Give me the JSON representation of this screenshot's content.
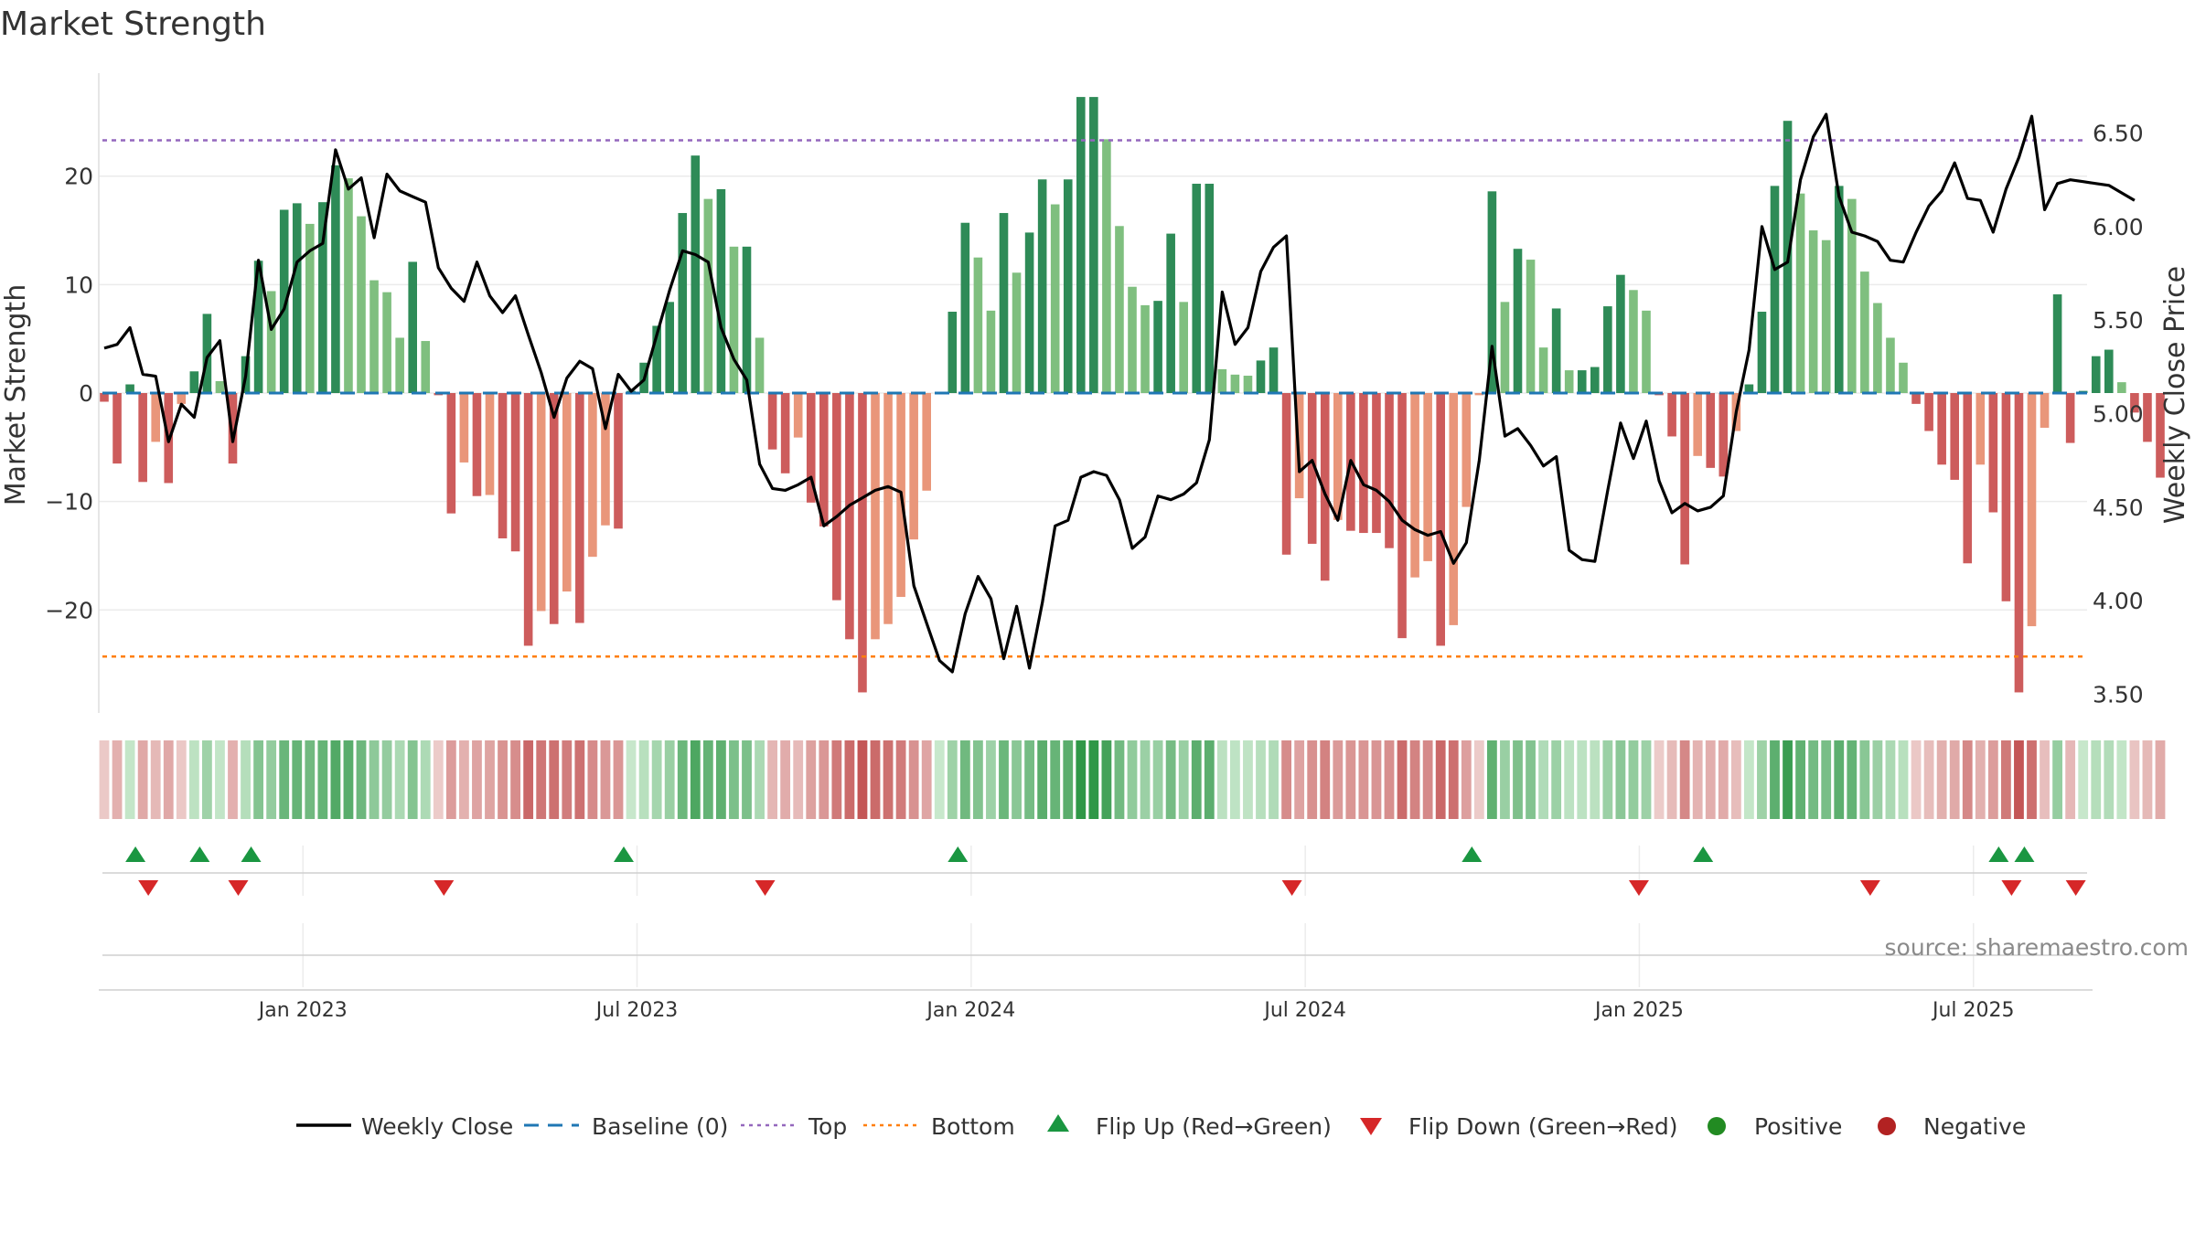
{
  "title": "Market Strength",
  "source": "source: sharemaestro.com",
  "colors": {
    "strong_pos": "#2e8b57",
    "weak_pos": "#7fbf7f",
    "strong_neg": "#cd5c5c",
    "weak_neg": "#e9967a",
    "line": "#000000",
    "baseline": "#1f77b4",
    "top": "#9467bd",
    "bottom": "#ff7f0e",
    "flip_up": "#1a9641",
    "flip_down": "#d62728",
    "positive": "#228b22",
    "negative": "#b22222",
    "grid": "#ebebeb"
  },
  "chart_data": {
    "type": "bar+line",
    "title": "Market Strength",
    "ylabel": "Market Strength",
    "y2label": "Weekly Close Price",
    "ylim": [
      -29.5,
      29.5
    ],
    "y2lim": [
      3.4,
      6.82
    ],
    "yticks": [
      20,
      10,
      0,
      -10,
      -20
    ],
    "ytick_labels": [
      "20",
      "10",
      "0",
      "−10",
      "−20"
    ],
    "y2ticks": [
      6.5,
      6.0,
      5.5,
      5.0,
      4.5,
      4.0,
      3.5
    ],
    "y2tick_labels": [
      "6.50",
      "6.00",
      "5.50",
      "5.00",
      "4.50",
      "4.00",
      "3.50"
    ],
    "top_level": 23.3,
    "bottom_level": -24.3,
    "baseline": 0,
    "xticks": [
      {
        "label": "Jan 2023",
        "week": 15
      },
      {
        "label": "Jul 2023",
        "week": 41
      },
      {
        "label": "Jan 2024",
        "week": 67
      },
      {
        "label": "Jul 2024",
        "week": 93
      },
      {
        "label": "Jan 2025",
        "week": 119
      },
      {
        "label": "Jul 2025",
        "week": 145
      }
    ],
    "strength": [
      -0.8,
      -6.5,
      0.8,
      -8.2,
      -4.5,
      -8.3,
      -1,
      2,
      7.3,
      1.1,
      -6.5,
      3.4,
      12.2,
      9.4,
      16.9,
      17.5,
      15.6,
      17.6,
      21.0,
      19.8,
      16.3,
      10.4,
      9.3,
      5.1,
      12.1,
      4.8,
      -0.2,
      -11.1,
      -6.4,
      -9.5,
      -9.4,
      -13.4,
      -14.6,
      -23.3,
      -20.1,
      -21.3,
      -18.3,
      -21.2,
      -15.1,
      -12.2,
      -12.5,
      0.2,
      2.8,
      6.2,
      8.4,
      16.6,
      21.9,
      17.9,
      18.8,
      13.5,
      13.5,
      5.1,
      -5.2,
      -7.4,
      -4.1,
      -10.1,
      -12.3,
      -19.1,
      -22.7,
      -27.6,
      -22.7,
      -21.3,
      -18.8,
      -13.5,
      -9.0,
      0,
      7.5,
      15.7,
      12.5,
      7.6,
      16.6,
      11.1,
      14.8,
      19.7,
      17.4,
      19.7,
      27.3,
      27.3,
      23.4,
      15.4,
      9.8,
      8.1,
      8.5,
      14.7,
      8.4,
      19.3,
      19.3,
      2.2,
      1.7,
      1.6,
      3.0,
      4.2,
      -14.9,
      -9.7,
      -13.9,
      -17.3,
      -11.7,
      -12.7,
      -12.9,
      -12.9,
      -14.3,
      -22.6,
      -17.0,
      -15.5,
      -23.3,
      -21.4,
      -10.5,
      -0.2,
      18.6,
      8.4,
      13.3,
      12.3,
      4.2,
      7.8,
      2.1,
      2.1,
      2.4,
      8.0,
      10.9,
      9.5,
      7.6,
      -0.2,
      -4.0,
      -15.8,
      -5.8,
      -6.9,
      -7.7,
      -3.5,
      0.8,
      7.5,
      19.1,
      25.1,
      18.4,
      15.0,
      14.1,
      19.1,
      17.9,
      11.2,
      8.3,
      5.1,
      2.8,
      -1.0,
      -3.5,
      -6.6,
      -8.0,
      -15.7,
      -6.6,
      -11.0,
      -19.2,
      -27.6,
      -21.5,
      -3.2,
      9.1,
      -4.6,
      0.2,
      3.4,
      4.0,
      1.0,
      -1.8,
      -4.5,
      -7.8
    ],
    "close": [
      5.35,
      5.37,
      5.46,
      5.21,
      5.2,
      4.85,
      5.05,
      4.98,
      5.3,
      5.39,
      4.85,
      5.2,
      5.82,
      5.45,
      5.56,
      5.81,
      5.87,
      5.91,
      6.41,
      6.2,
      6.26,
      5.94,
      6.28,
      6.19,
      6.16,
      6.13,
      5.78,
      5.67,
      5.6,
      5.81,
      5.63,
      5.54,
      5.63,
      5.42,
      5.22,
      4.98,
      5.19,
      5.28,
      5.24,
      4.92,
      5.21,
      5.12,
      5.18,
      5.42,
      5.66,
      5.87,
      5.85,
      5.81,
      5.46,
      5.29,
      5.18,
      4.73,
      4.6,
      4.59,
      4.62,
      4.66,
      4.4,
      4.45,
      4.51,
      4.55,
      4.59,
      4.61,
      4.58,
      4.08,
      3.88,
      3.68,
      3.62,
      3.93,
      4.13,
      4.01,
      3.69,
      3.97,
      3.64,
      3.99,
      4.4,
      4.43,
      4.66,
      4.69,
      4.67,
      4.54,
      4.28,
      4.34,
      4.56,
      4.54,
      4.57,
      4.63,
      4.86,
      5.65,
      5.37,
      5.46,
      5.76,
      5.89,
      5.95,
      4.69,
      4.75,
      4.57,
      4.43,
      4.75,
      4.62,
      4.59,
      4.53,
      4.43,
      4.38,
      4.35,
      4.37,
      4.2,
      4.31,
      4.75,
      5.36,
      4.88,
      4.92,
      4.83,
      4.72,
      4.77,
      4.27,
      4.22,
      4.21,
      4.59,
      4.95,
      4.76,
      4.96,
      4.64,
      4.47,
      4.52,
      4.48,
      4.5,
      4.56,
      5.01,
      5.34,
      6.0,
      5.77,
      5.81,
      6.25,
      6.48,
      6.6,
      6.16,
      5.97,
      5.95,
      5.92,
      5.82,
      5.81,
      5.97,
      6.11,
      6.19,
      6.34,
      6.15,
      6.14,
      5.97,
      6.2,
      6.37,
      6.59,
      6.09,
      6.23,
      6.25,
      6.24,
      6.23,
      6.22,
      6.18,
      6.14
    ],
    "flip_up_weeks": [
      2,
      7,
      11,
      40,
      66,
      106,
      124,
      147,
      149
    ],
    "flip_down_weeks": [
      3,
      10,
      26,
      51,
      92,
      119,
      137,
      148,
      153
    ],
    "legend": [
      "Weekly Close",
      "Baseline (0)",
      "Top",
      "Bottom",
      "Flip Up (Red→Green)",
      "Flip Down (Green→Red)",
      "Positive",
      "Negative"
    ]
  }
}
